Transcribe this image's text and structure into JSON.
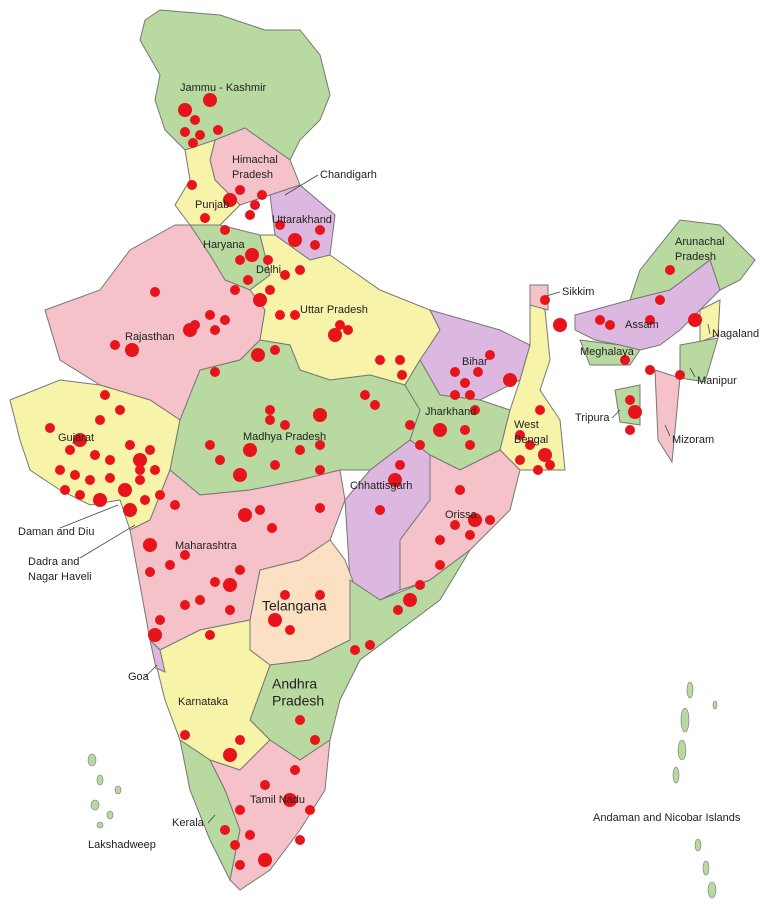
{
  "map": {
    "labels": [
      [
        "Jammu - Kashmir"
      ],
      [
        "Himachal",
        "Pradesh"
      ],
      [
        "Chandigarh"
      ],
      [
        "Punjab"
      ],
      [
        "Uttarakhand"
      ],
      [
        "Haryana"
      ],
      [
        "Delhi"
      ],
      [
        "Uttar Pradesh"
      ],
      [
        "Rajasthan"
      ],
      [
        "Gujarat"
      ],
      [
        "Madhya Pradesh"
      ],
      [
        "Bihar"
      ],
      [
        "Jharkhand"
      ],
      [
        "West",
        "Bengal"
      ],
      [
        "Chhattisgarh"
      ],
      [
        "Orissa"
      ],
      [
        "Daman and Diu"
      ],
      [
        "Dadra and",
        "Nagar Haveli"
      ],
      [
        "Maharashtra"
      ],
      [
        "Telangana"
      ],
      [
        "Goa"
      ],
      [
        "Karnataka"
      ],
      [
        "Andhra",
        "Pradesh"
      ],
      [
        "Tamil Nadu"
      ],
      [
        "Kerala"
      ],
      [
        "Lakshadweep"
      ],
      [
        "Andaman and Nicobar Islands"
      ],
      [
        "Sikkim"
      ],
      [
        "Arunachal",
        "Pradesh"
      ],
      [
        "Assam"
      ],
      [
        "Nagaland"
      ],
      [
        "Meghalaya"
      ],
      [
        "Manipur"
      ],
      [
        "Tripura"
      ],
      [
        "Mizoram"
      ]
    ]
  }
}
